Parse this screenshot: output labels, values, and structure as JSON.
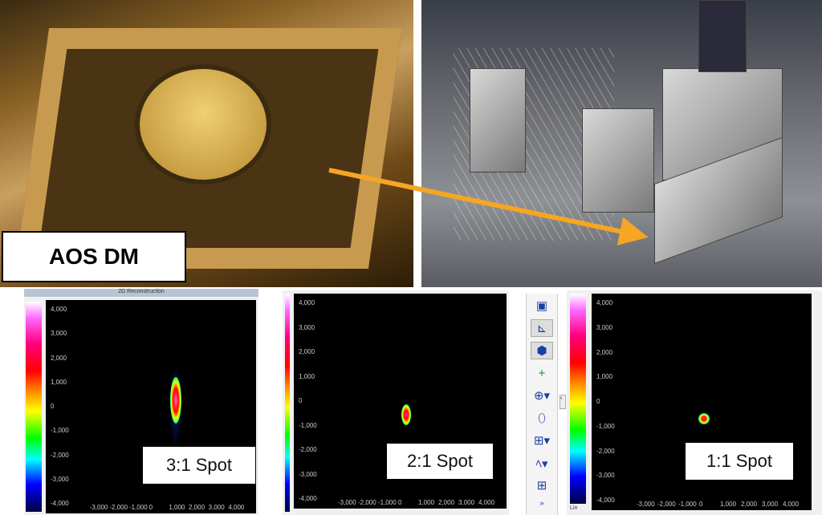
{
  "photo_label": "AOS DM",
  "arrow_color": "#f5a623",
  "panel1": {
    "title": "2D Reconstruction",
    "spot_label": "3:1 Spot"
  },
  "panel2": {
    "spot_label": "2:1 Spot"
  },
  "panel3": {
    "spot_label": "1:1 Spot",
    "colorbar_label": "Lin"
  },
  "axis_ticks": {
    "y": [
      "4,000",
      "3,000",
      "2,000",
      "1,000",
      "0",
      "-1,000",
      "-2,000",
      "-3,000",
      "-4,000"
    ],
    "x": [
      "-3,000",
      "-2,000",
      "-1,000",
      "0",
      "1,000",
      "2,000",
      "3,000",
      "4,000"
    ]
  },
  "toolbar": {
    "icons": [
      "save-image-icon",
      "axes-icon",
      "color-palette-icon",
      "crosshair-plus-icon",
      "centroid-icon",
      "ellipse-icon",
      "grid-icon",
      "profile-icon",
      "table-icon",
      "expand-more-icon"
    ]
  }
}
